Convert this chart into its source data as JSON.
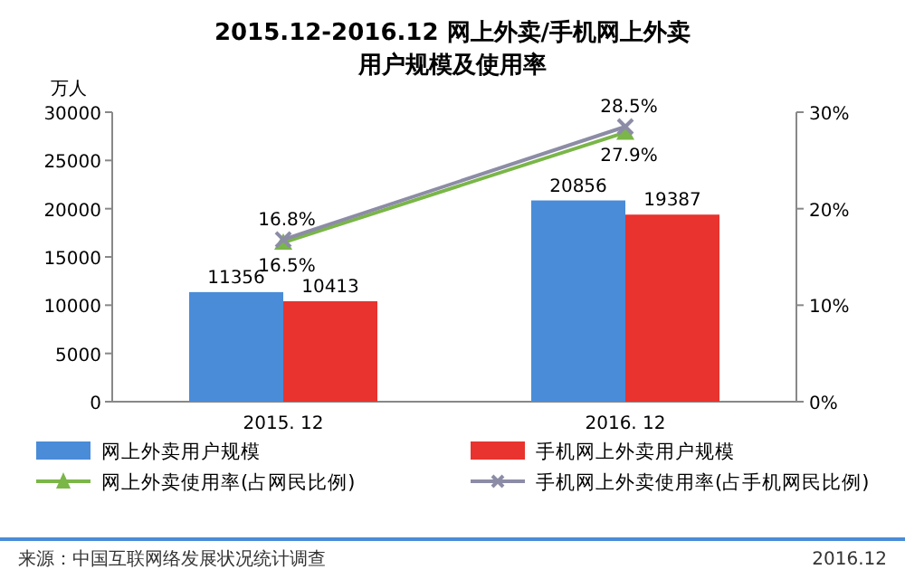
{
  "chart_data": {
    "type": "bar",
    "title": "2015.12-2016.12 网上外卖/手机网上外卖",
    "subtitle": "用户规模及使用率",
    "ylabel": "万人",
    "categories": [
      "2015. 12",
      "2016. 12"
    ],
    "series": [
      {
        "name": "网上外卖用户规模",
        "color": "#4a8cd8",
        "values": [
          11356,
          20856
        ],
        "value_labels": [
          "11356",
          "20856"
        ]
      },
      {
        "name": "手机网上外卖用户规模",
        "color": "#e8332e",
        "values": [
          10413,
          19387
        ],
        "value_labels": [
          "10413",
          "19387"
        ]
      },
      {
        "name": "网上外卖使用率(占网民比例)",
        "type": "line",
        "axis": "y2",
        "marker": "triangle",
        "color": "#7ab648",
        "values": [
          16.5,
          27.9
        ],
        "value_labels": [
          "16.5%",
          "27.9%"
        ]
      },
      {
        "name": "手机网上外卖使用率(占手机网民比例)",
        "type": "line",
        "axis": "y2",
        "marker": "cross",
        "color": "#8c8ca6",
        "values": [
          16.8,
          28.5
        ],
        "value_labels": [
          "16.8%",
          "28.5%"
        ]
      }
    ],
    "ylim": [
      0,
      30000
    ],
    "yticks": [
      0,
      5000,
      10000,
      15000,
      20000,
      25000,
      30000
    ],
    "y2lim": [
      0,
      30
    ],
    "y2ticks": [
      {
        "value": 0,
        "label": "0%"
      },
      {
        "value": 10,
        "label": "10%"
      },
      {
        "value": 20,
        "label": "20%"
      },
      {
        "value": 30,
        "label": "30%"
      }
    ],
    "legend": "bottom",
    "annotations": [
      "来源：中国互联网络发展状况统计调查",
      "2016.12"
    ]
  }
}
